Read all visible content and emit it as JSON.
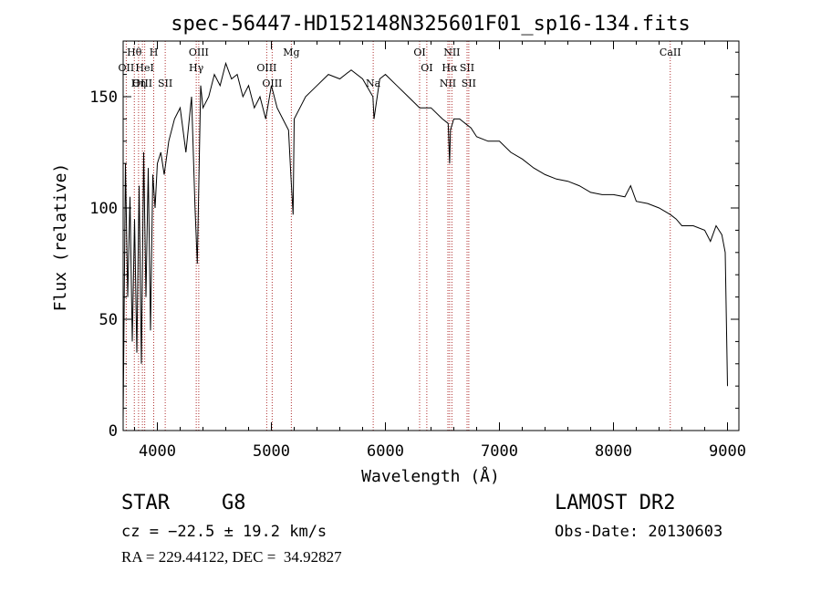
{
  "chart_data": {
    "type": "line",
    "title": "spec-56447-HD152148N325601F01_sp16-134.fits",
    "xlabel": "Wavelength (Å)",
    "ylabel": "Flux (relative)",
    "xlim": [
      3700,
      9100
    ],
    "ylim": [
      0,
      175
    ],
    "x_ticks": [
      4000,
      5000,
      6000,
      7000,
      8000,
      9000
    ],
    "y_ticks": [
      0,
      50,
      100,
      150
    ],
    "x_tick_labels": [
      "4000",
      "5000",
      "6000",
      "7000",
      "8000",
      "9000"
    ],
    "y_tick_labels": [
      "0",
      "50",
      "100",
      "150"
    ],
    "line_color": "#000000",
    "marker_color": "#b03030",
    "series": [
      {
        "x": [
          3700,
          3720,
          3740,
          3760,
          3780,
          3800,
          3820,
          3840,
          3860,
          3880,
          3900,
          3920,
          3940,
          3960,
          3980,
          4000,
          4030,
          4060,
          4100,
          4150,
          4200,
          4250,
          4300,
          4330,
          4350,
          4380,
          4400,
          4450,
          4500,
          4550,
          4600,
          4650,
          4700,
          4750,
          4800,
          4850,
          4900,
          4950,
          5000,
          5050,
          5100,
          5150,
          5170,
          5190,
          5200,
          5250,
          5300,
          5400,
          5500,
          5600,
          5700,
          5800,
          5890,
          5900,
          5950,
          6000,
          6100,
          6200,
          6300,
          6400,
          6500,
          6550,
          6563,
          6570,
          6600,
          6650,
          6700,
          6750,
          6800,
          6900,
          7000,
          7100,
          7200,
          7300,
          7400,
          7500,
          7600,
          7700,
          7800,
          7900,
          8000,
          8100,
          8150,
          8200,
          8300,
          8400,
          8500,
          8550,
          8600,
          8700,
          8800,
          8850,
          8900,
          8950,
          8980,
          9000
        ],
        "y": [
          5,
          120,
          60,
          105,
          40,
          95,
          35,
          110,
          30,
          125,
          60,
          118,
          45,
          115,
          100,
          120,
          125,
          115,
          130,
          140,
          145,
          125,
          150,
          100,
          75,
          155,
          145,
          150,
          160,
          155,
          165,
          158,
          160,
          150,
          155,
          145,
          150,
          140,
          155,
          145,
          140,
          135,
          115,
          97,
          140,
          145,
          150,
          155,
          160,
          158,
          162,
          158,
          150,
          140,
          158,
          160,
          155,
          150,
          145,
          145,
          140,
          138,
          120,
          135,
          140,
          140,
          138,
          136,
          132,
          130,
          130,
          125,
          122,
          118,
          115,
          113,
          112,
          110,
          107,
          106,
          106,
          105,
          110,
          103,
          102,
          100,
          97,
          95,
          92,
          92,
          90,
          85,
          92,
          88,
          80,
          20
        ]
      }
    ],
    "line_markers": [
      {
        "label": "Hθ",
        "x": 3798,
        "row": 0
      },
      {
        "label": "OII",
        "x": 3727,
        "row": 1
      },
      {
        "label": "OIII",
        "x": 3869,
        "row": 2
      },
      {
        "label": "HeI",
        "x": 3889,
        "row": 1
      },
      {
        "label": "Hη",
        "x": 3835,
        "row": 2
      },
      {
        "label": "H",
        "x": 3968,
        "row": 0
      },
      {
        "label": "SII",
        "x": 4069,
        "row": 2
      },
      {
        "label": "OIII",
        "x": 4363,
        "row": 0
      },
      {
        "label": "Hγ",
        "x": 4341,
        "row": 1
      },
      {
        "label": "OIII",
        "x": 4959,
        "row": 1
      },
      {
        "label": "OIII",
        "x": 5007,
        "row": 2
      },
      {
        "label": "Mg",
        "x": 5175,
        "row": 0
      },
      {
        "label": "Na",
        "x": 5893,
        "row": 2
      },
      {
        "label": "OI",
        "x": 6300,
        "row": 0
      },
      {
        "label": "OI",
        "x": 6363,
        "row": 1
      },
      {
        "label": "NII",
        "x": 6548,
        "row": 2
      },
      {
        "label": "NII",
        "x": 6583,
        "row": 0
      },
      {
        "label": "Hα",
        "x": 6563,
        "row": 1
      },
      {
        "label": "SII",
        "x": 6716,
        "row": 1
      },
      {
        "label": "SII",
        "x": 6731,
        "row": 2
      },
      {
        "label": "CaII",
        "x": 8498,
        "row": 0
      }
    ]
  },
  "info": {
    "class_label": "STAR",
    "subclass": "G8",
    "survey": "LAMOST DR2",
    "cz": "cz = −22.5 ± 19.2 km/s",
    "obs_date": "Obs-Date: 20130603",
    "coords": "RA = 229.44122, DEC =  34.92827"
  }
}
